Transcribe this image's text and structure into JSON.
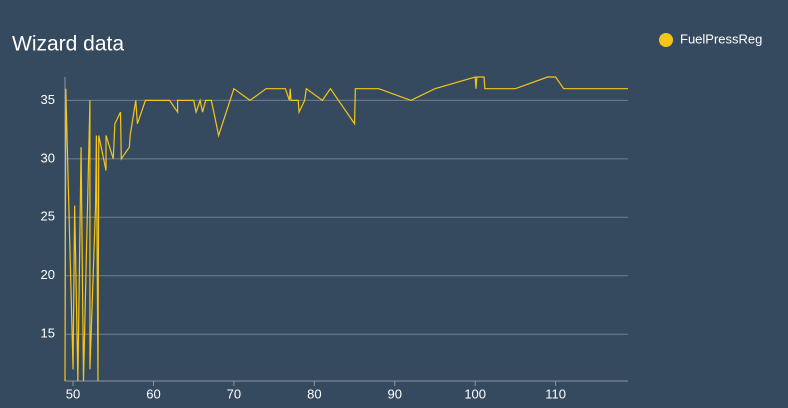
{
  "chart_data": {
    "type": "line",
    "title": "Wizard data",
    "x": [
      49.0,
      49.1,
      50.0,
      50.2,
      50.6,
      51.0,
      51.3,
      52.1,
      52.1,
      52.8,
      52.9,
      53.1,
      53.2,
      54.1,
      54.1,
      55.0,
      55.2,
      55.9,
      56.0,
      57.0,
      57.1,
      57.8,
      58.0,
      59.0,
      62.0,
      63.0,
      63.0,
      65.0,
      65.3,
      65.8,
      66.1,
      66.5,
      67.2,
      68.1,
      70.0,
      72.0,
      74.0,
      76.4,
      76.9,
      77.0,
      77.1,
      78.0,
      78.1,
      78.8,
      79.0,
      81.0,
      82.0,
      85.0,
      85.1,
      88.0,
      92.0,
      95.0,
      100.0,
      100.1,
      100.2,
      101.1,
      101.2,
      105.0,
      109.0,
      110.0,
      111.0,
      119.0
    ],
    "series": [
      {
        "name": "FuelPressReg",
        "color": "#f5c518",
        "values": [
          11,
          36,
          12,
          26,
          11,
          31,
          11,
          35,
          12,
          26,
          32,
          11,
          32,
          29,
          32,
          30,
          33,
          34,
          30,
          31,
          32,
          35,
          33,
          35,
          35,
          34,
          35,
          35,
          34,
          35,
          34,
          35,
          35,
          32,
          36,
          35,
          36,
          36,
          35,
          36,
          35,
          35,
          34,
          35,
          36,
          35,
          36,
          33,
          36,
          36,
          35,
          36,
          37,
          36,
          37,
          37,
          36,
          36,
          37,
          37,
          36,
          36
        ]
      }
    ],
    "xlim": [
      49,
      119
    ],
    "xticks": [
      50,
      60,
      70,
      80,
      90,
      100,
      110
    ],
    "ylim": [
      11,
      37
    ],
    "yticks": [
      15,
      20,
      25,
      30,
      35
    ],
    "grid": true,
    "legend": "top-right"
  }
}
